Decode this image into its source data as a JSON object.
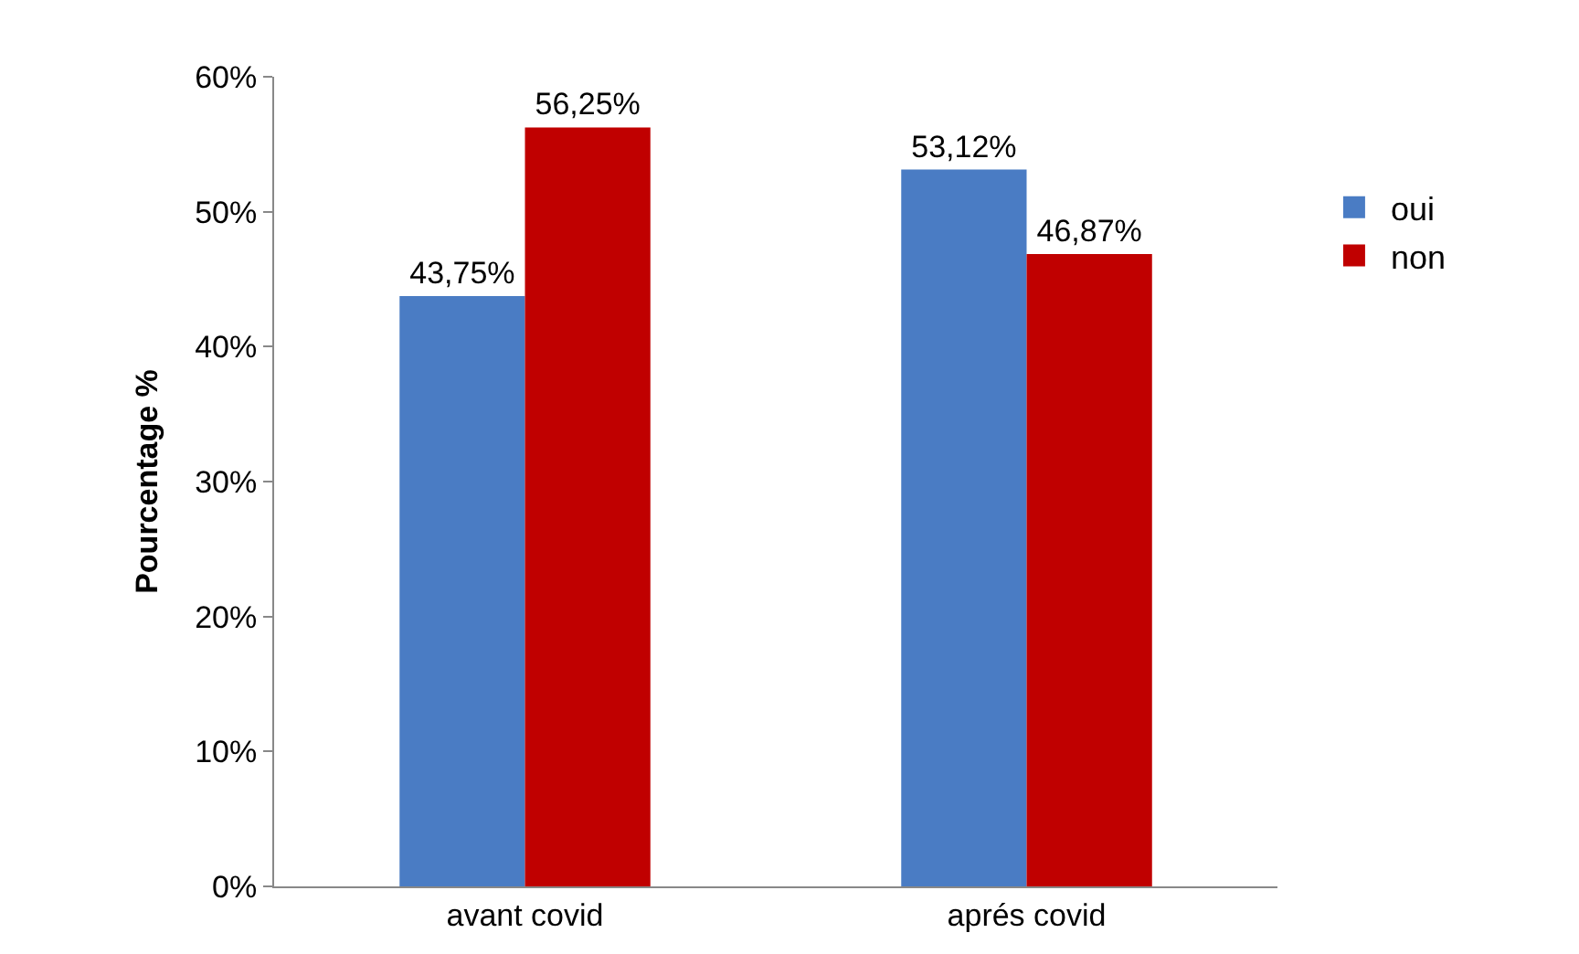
{
  "chart_data": {
    "type": "bar",
    "ylabel": "Pourcentage %",
    "categories": [
      "avant covid",
      "aprés covid"
    ],
    "series": [
      {
        "name": "oui",
        "color": "#4a7cc4",
        "values": [
          43.75,
          53.12
        ],
        "value_labels": [
          "43,75%",
          "53,12%"
        ]
      },
      {
        "name": "non",
        "color": "#c00000",
        "values": [
          56.25,
          46.87
        ],
        "value_labels": [
          "56,25%",
          "46,87%"
        ]
      }
    ],
    "ylim": [
      0,
      60
    ],
    "yticks": [
      {
        "value": 0,
        "label": "0%"
      },
      {
        "value": 10,
        "label": "10%"
      },
      {
        "value": 20,
        "label": "20%"
      },
      {
        "value": 30,
        "label": "30%"
      },
      {
        "value": 40,
        "label": "40%"
      },
      {
        "value": 50,
        "label": "50%"
      },
      {
        "value": 60,
        "label": "60%"
      }
    ],
    "grid": false,
    "legend": "right"
  }
}
